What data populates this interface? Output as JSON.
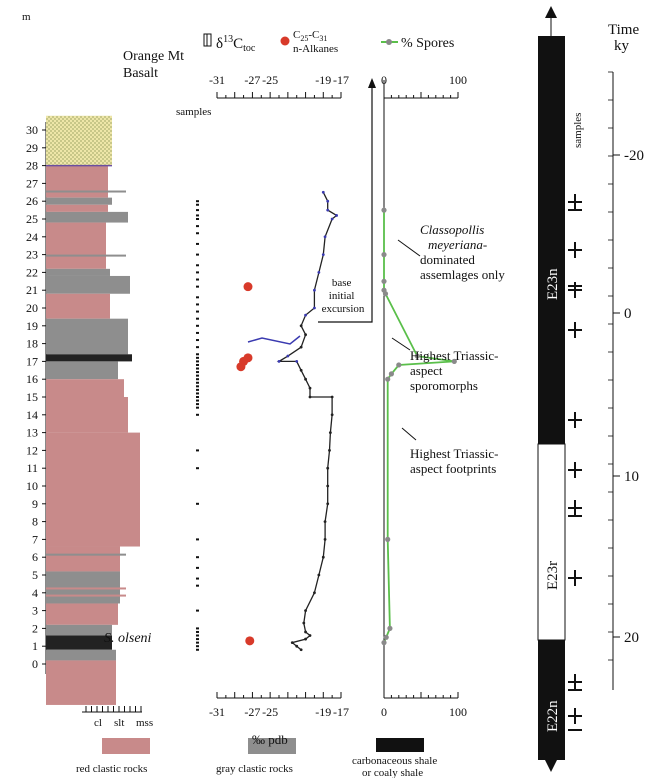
{
  "strat_column": {
    "unit_label": "m",
    "meter_ticks": [
      30,
      29,
      28,
      27,
      26,
      25,
      24,
      23,
      22,
      21,
      20,
      19,
      18,
      17,
      16,
      15,
      14,
      13,
      12,
      11,
      10,
      9,
      8,
      7,
      6,
      5,
      4,
      3,
      2,
      1,
      0
    ],
    "grain_axis": [
      "cl",
      "slt",
      "mss"
    ],
    "labels": {
      "basalt": "Orange Mt\nBasalt",
      "species": "S. olseni"
    },
    "colors": {
      "red": "#c88a8a",
      "gray": "#8e8e8e",
      "black": "#222222",
      "basalt": "#e8dfa0"
    }
  },
  "legend": {
    "red": "red clastic rocks",
    "gray": "gray clastic rocks",
    "black": "carbonaceous shale\nor coaly shale"
  },
  "samples_label": "samples",
  "chart_data": [
    {
      "type": "line",
      "title": "δ13C toc",
      "legend": [
        "δ13Ctoc",
        "C25-C31 n-Alkanes"
      ],
      "xlabel": "‰ pdb",
      "x_ticks": [
        -31,
        -27,
        -25,
        -19,
        -17
      ],
      "ylabel": "m",
      "series": [
        {
          "name": "δ13Ctoc",
          "points": [
            [
              -21.5,
              0.8
            ],
            [
              -22.0,
              1.0
            ],
            [
              -22.5,
              1.2
            ],
            [
              -21.0,
              1.4
            ],
            [
              -20.5,
              1.6
            ],
            [
              -21.0,
              1.8
            ],
            [
              -21.2,
              2.3
            ],
            [
              -21.0,
              3.0
            ],
            [
              -20.0,
              4.0
            ],
            [
              -19.5,
              5.0
            ],
            [
              -19.0,
              6.0
            ],
            [
              -18.8,
              7.0
            ],
            [
              -18.8,
              8.0
            ],
            [
              -18.5,
              9.0
            ],
            [
              -18.5,
              10.0
            ],
            [
              -18.5,
              11.0
            ],
            [
              -18.3,
              12.0
            ],
            [
              -18.2,
              13.0
            ],
            [
              -18.0,
              14.0
            ],
            [
              -18.0,
              15.0
            ],
            [
              -20.5,
              15.0
            ],
            [
              -20.5,
              15.5
            ],
            [
              -21.0,
              16.0
            ],
            [
              -21.5,
              16.5
            ],
            [
              -22.0,
              17.0
            ],
            [
              -24.0,
              17.0
            ],
            [
              -23.0,
              17.3
            ],
            [
              -21.5,
              17.8
            ],
            [
              -21.0,
              18.5
            ],
            [
              -21.5,
              19.0
            ],
            [
              -21.0,
              19.6
            ],
            [
              -20.0,
              20.0
            ],
            [
              -20.0,
              21.0
            ],
            [
              -19.5,
              22.0
            ],
            [
              -19.0,
              23.0
            ],
            [
              -18.8,
              24.0
            ],
            [
              -18.0,
              25.0
            ],
            [
              -17.5,
              25.2
            ],
            [
              -18.5,
              25.5
            ],
            [
              -18.5,
              26.0
            ],
            [
              -19.0,
              26.5
            ]
          ]
        },
        {
          "name": "C25-C31 n-Alkanes",
          "points": [
            [
              -27.5,
              21.2
            ],
            [
              -27.5,
              17.2
            ],
            [
              -28.0,
              17.0
            ],
            [
              -28.3,
              16.7
            ],
            [
              -27.3,
              1.3
            ]
          ]
        }
      ],
      "annotation": "base\ninitial\nexcursion"
    },
    {
      "type": "line",
      "title": "% Spores",
      "series": [
        {
          "name": "% Spores",
          "points": [
            [
              0,
              25.5
            ],
            [
              0,
              23.0
            ],
            [
              0,
              21.5
            ],
            [
              0,
              21.0
            ],
            [
              2,
              20.8
            ],
            [
              45,
              17.3
            ],
            [
              95,
              17.0
            ],
            [
              20,
              16.8
            ],
            [
              10,
              16.3
            ],
            [
              5,
              16.0
            ],
            [
              5,
              7.0
            ],
            [
              8,
              2.0
            ],
            [
              3,
              1.5
            ],
            [
              0,
              1.2
            ]
          ]
        }
      ],
      "x_ticks": [
        0,
        100
      ],
      "annotations": [
        "Classopollis\nmeyeriana-\ndominated\nassemlages only",
        "Highest Triassic-\naspect\nsporomorphs",
        "Highest Triassic-\naspect footprints"
      ]
    },
    {
      "type": "bar",
      "title": "Time\nky",
      "magnetozones": [
        "E23n",
        "E23r",
        "E22n"
      ],
      "time_ticks": [
        -20,
        0,
        10,
        20
      ]
    }
  ]
}
